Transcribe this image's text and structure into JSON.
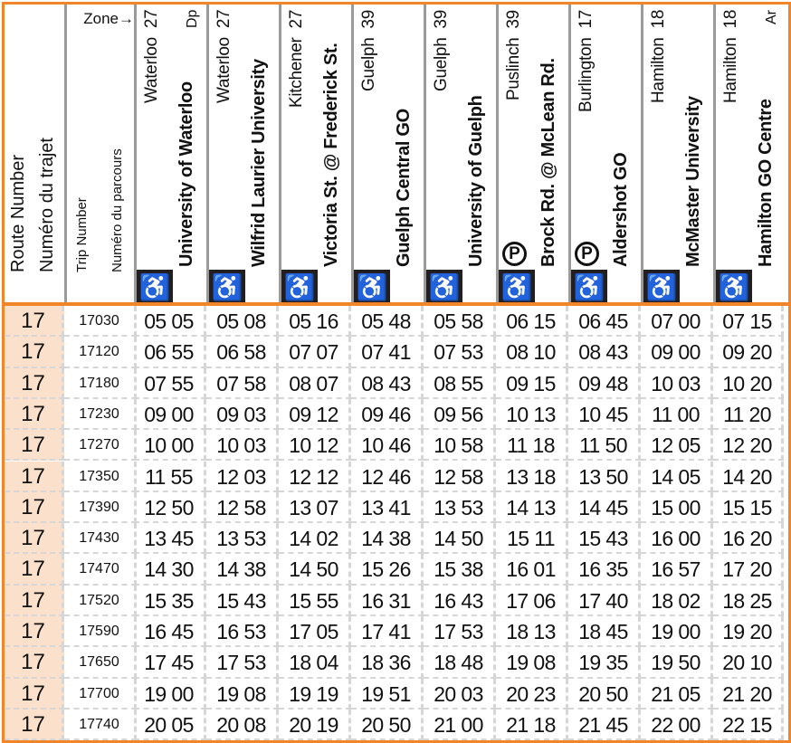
{
  "header": {
    "route_number_en": "Route Number",
    "route_number_fr": "Numéro du trajet",
    "trip_number_en": "Trip Number",
    "trip_number_fr": "Numéro du parcours",
    "zone_label": "Zone→",
    "stops": [
      {
        "city": "Waterloo",
        "zone": "27",
        "name": "University of Waterloo",
        "tag": "Dp",
        "accessible": true,
        "parking": false
      },
      {
        "city": "Waterloo",
        "zone": "27",
        "name": "Wilfrid Laurier University",
        "tag": "",
        "accessible": true,
        "parking": false
      },
      {
        "city": "Kitchener",
        "zone": "27",
        "name": "Victoria St. @ Frederick St.",
        "tag": "",
        "accessible": true,
        "parking": false
      },
      {
        "city": "Guelph",
        "zone": "39",
        "name": "Guelph Central GO",
        "tag": "",
        "accessible": true,
        "parking": false
      },
      {
        "city": "Guelph",
        "zone": "39",
        "name": "University of Guelph",
        "tag": "",
        "accessible": true,
        "parking": false
      },
      {
        "city": "Puslinch",
        "zone": "39",
        "name": "Brock Rd. @ McLean Rd.",
        "tag": "",
        "accessible": true,
        "parking": true
      },
      {
        "city": "Burlington",
        "zone": "17",
        "name": "Aldershot GO",
        "tag": "",
        "accessible": true,
        "parking": true
      },
      {
        "city": "Hamilton",
        "zone": "18",
        "name": "McMaster University",
        "tag": "",
        "accessible": true,
        "parking": false
      },
      {
        "city": "Hamilton",
        "zone": "18",
        "name": "Hamilton GO Centre",
        "tag": "Ar",
        "accessible": true,
        "parking": false
      }
    ],
    "icons": {
      "accessible": "wheelchair-icon",
      "parking": "parking-icon"
    }
  },
  "colors": {
    "accent": "#f0852a",
    "route_bg": "#fbe1cc",
    "icon_bg": "#231f20"
  },
  "trips": [
    {
      "route": "17",
      "trip": "17030",
      "times": [
        "05 05",
        "05 08",
        "05 16",
        "05 48",
        "05 58",
        "06 15",
        "06 45",
        "07 00",
        "07 15"
      ]
    },
    {
      "route": "17",
      "trip": "17120",
      "times": [
        "06 55",
        "06 58",
        "07 07",
        "07 41",
        "07 53",
        "08 10",
        "08 43",
        "09 00",
        "09 20"
      ]
    },
    {
      "route": "17",
      "trip": "17180",
      "times": [
        "07 55",
        "07 58",
        "08 07",
        "08 43",
        "08 55",
        "09 15",
        "09 48",
        "10 03",
        "10 20"
      ]
    },
    {
      "route": "17",
      "trip": "17230",
      "times": [
        "09 00",
        "09 03",
        "09 12",
        "09 46",
        "09 56",
        "10 13",
        "10 45",
        "11 00",
        "11 20"
      ]
    },
    {
      "route": "17",
      "trip": "17270",
      "times": [
        "10 00",
        "10 03",
        "10 12",
        "10 46",
        "10 58",
        "11 18",
        "11 50",
        "12 05",
        "12 20"
      ]
    },
    {
      "route": "17",
      "trip": "17350",
      "times": [
        "11 55",
        "12 03",
        "12 12",
        "12 46",
        "12 58",
        "13 18",
        "13 50",
        "14 05",
        "14 20"
      ]
    },
    {
      "route": "17",
      "trip": "17390",
      "times": [
        "12 50",
        "12 58",
        "13 07",
        "13 41",
        "13 53",
        "14 13",
        "14 45",
        "15 00",
        "15 15"
      ]
    },
    {
      "route": "17",
      "trip": "17430",
      "times": [
        "13 45",
        "13 53",
        "14 02",
        "14 38",
        "14 50",
        "15 11",
        "15 43",
        "16 00",
        "16 20"
      ]
    },
    {
      "route": "17",
      "trip": "17470",
      "times": [
        "14 30",
        "14 38",
        "14 50",
        "15 26",
        "15 38",
        "16 01",
        "16 35",
        "16 57",
        "17 20"
      ]
    },
    {
      "route": "17",
      "trip": "17520",
      "times": [
        "15 35",
        "15 43",
        "15 55",
        "16 31",
        "16 43",
        "17 06",
        "17 40",
        "18 02",
        "18 25"
      ]
    },
    {
      "route": "17",
      "trip": "17590",
      "times": [
        "16 45",
        "16 53",
        "17 05",
        "17 41",
        "17 53",
        "18 13",
        "18 45",
        "19 00",
        "19 20"
      ]
    },
    {
      "route": "17",
      "trip": "17650",
      "times": [
        "17 45",
        "17 53",
        "18 04",
        "18 36",
        "18 48",
        "19 08",
        "19 35",
        "19 50",
        "20 10"
      ]
    },
    {
      "route": "17",
      "trip": "17700",
      "times": [
        "19 00",
        "19 08",
        "19 19",
        "19 51",
        "20 03",
        "20 23",
        "20 50",
        "21 05",
        "21 20"
      ]
    },
    {
      "route": "17",
      "trip": "17740",
      "times": [
        "20 05",
        "20 08",
        "20 19",
        "20 50",
        "21 00",
        "21 18",
        "21 45",
        "22 00",
        "22 15"
      ]
    }
  ]
}
